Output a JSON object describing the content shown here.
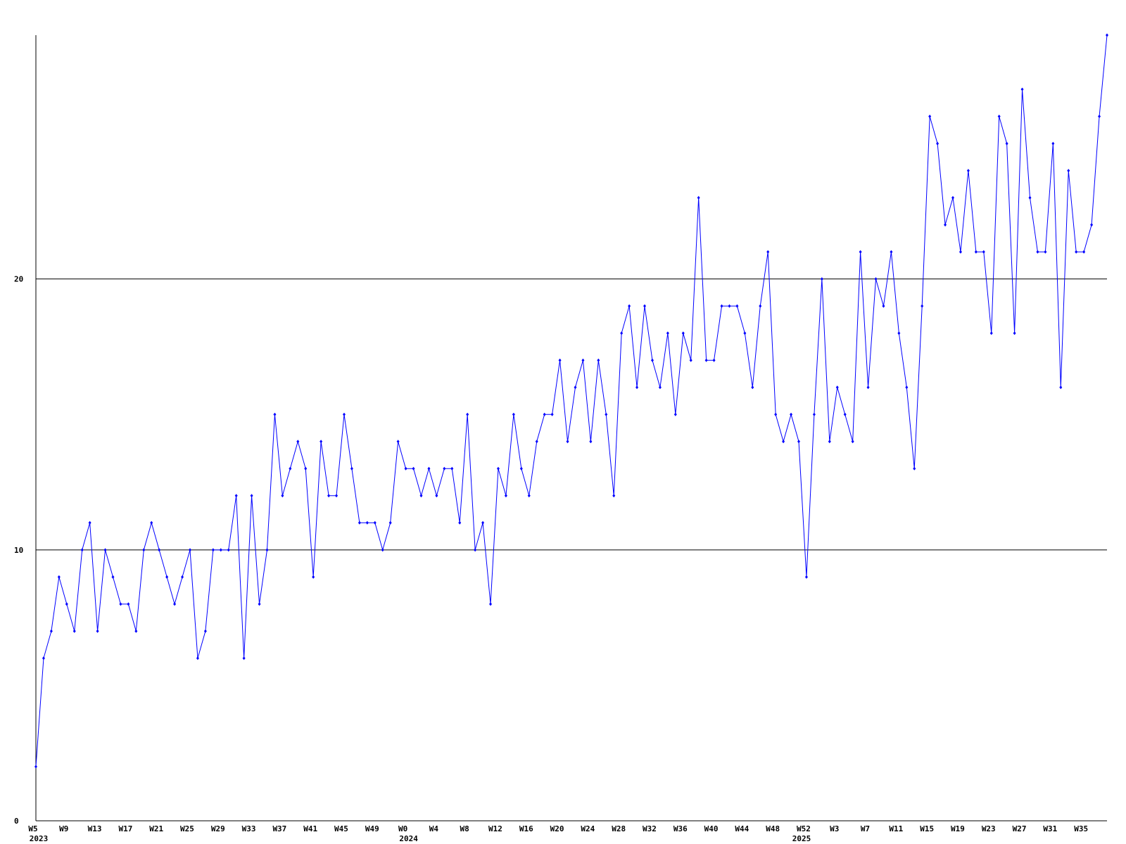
{
  "chart_data": {
    "type": "line",
    "categories": [
      "W5",
      null,
      null,
      null,
      "W9",
      null,
      null,
      null,
      "W13",
      null,
      null,
      null,
      "W17",
      null,
      null,
      null,
      "W21",
      null,
      null,
      null,
      "W25",
      null,
      null,
      null,
      "W29",
      null,
      null,
      null,
      "W33",
      null,
      null,
      null,
      "W37",
      null,
      null,
      null,
      "W41",
      null,
      null,
      null,
      "W45",
      null,
      null,
      null,
      "W49",
      null,
      null,
      null,
      "W0",
      null,
      null,
      null,
      "W4",
      null,
      null,
      null,
      "W8",
      null,
      null,
      null,
      "W12",
      null,
      null,
      null,
      "W16",
      null,
      null,
      null,
      "W20",
      null,
      null,
      null,
      "W24",
      null,
      null,
      null,
      "W28",
      null,
      null,
      null,
      "W32",
      null,
      null,
      null,
      "W36",
      null,
      null,
      null,
      "W40",
      null,
      null,
      null,
      "W44",
      null,
      null,
      null,
      "W48",
      null,
      null,
      null,
      "W52",
      null,
      null,
      null,
      "W3",
      null,
      null,
      null,
      "W7",
      null,
      null,
      null,
      "W11",
      null,
      null,
      null,
      "W15",
      null,
      null,
      null,
      "W19",
      null,
      null,
      null,
      "W23",
      null,
      null,
      null,
      "W27",
      null,
      null,
      null,
      "W31",
      null,
      null,
      null,
      "W35",
      null,
      null,
      null
    ],
    "category_years": [
      "2023",
      null,
      null,
      null,
      null,
      null,
      null,
      null,
      null,
      null,
      null,
      null,
      null,
      null,
      null,
      null,
      null,
      null,
      null,
      null,
      null,
      null,
      null,
      null,
      null,
      null,
      null,
      null,
      null,
      null,
      null,
      null,
      null,
      null,
      null,
      null,
      null,
      null,
      null,
      null,
      null,
      null,
      null,
      null,
      null,
      null,
      null,
      null,
      "2024",
      null,
      null,
      null,
      null,
      null,
      null,
      null,
      null,
      null,
      null,
      null,
      null,
      null,
      null,
      null,
      null,
      null,
      null,
      null,
      null,
      null,
      null,
      null,
      null,
      null,
      null,
      null,
      null,
      null,
      null,
      null,
      null,
      null,
      null,
      null,
      null,
      null,
      null,
      null,
      null,
      null,
      null,
      null,
      null,
      null,
      null,
      null,
      null,
      null,
      null,
      "2025",
      null,
      null,
      null,
      null,
      null,
      null,
      null,
      null,
      null,
      null,
      null,
      null,
      null,
      null,
      null,
      null,
      null,
      null,
      null,
      null,
      null,
      null,
      null,
      null,
      null,
      null,
      null,
      null,
      null,
      null,
      null,
      null,
      null,
      null,
      null,
      null,
      null
    ],
    "series": [
      {
        "color": "#0000ff",
        "values": [
          2,
          6,
          7,
          9,
          8,
          7,
          10,
          11,
          7,
          10,
          9,
          8,
          8,
          7,
          10,
          11,
          10,
          9,
          8,
          9,
          10,
          6,
          7,
          10,
          10,
          10,
          12,
          6,
          12,
          8,
          10,
          15,
          12,
          13,
          14,
          13,
          9,
          14,
          12,
          12,
          15,
          13,
          11,
          11,
          11,
          10,
          11,
          14,
          13,
          13,
          12,
          13,
          12,
          13,
          13,
          11,
          15,
          10,
          11,
          8,
          13,
          12,
          15,
          13,
          12,
          14,
          15,
          15,
          17,
          14,
          16,
          17,
          14,
          17,
          15,
          12,
          18,
          19,
          16,
          19,
          17,
          16,
          18,
          15,
          18,
          17,
          23,
          17,
          17,
          19,
          19,
          19,
          18,
          16,
          19,
          21,
          15,
          14,
          15,
          14,
          9,
          15,
          20,
          14,
          16,
          15,
          14,
          21,
          16,
          20,
          19,
          21,
          18,
          16,
          13,
          19,
          26,
          25,
          22,
          23,
          21,
          24,
          21,
          21,
          18,
          26,
          25,
          18,
          27,
          23,
          21,
          21,
          25,
          16,
          24,
          21,
          21,
          22,
          26,
          29
        ]
      }
    ],
    "ylim": [
      0,
      29
    ],
    "yticks": [
      0,
      10,
      20
    ],
    "grid": true
  }
}
